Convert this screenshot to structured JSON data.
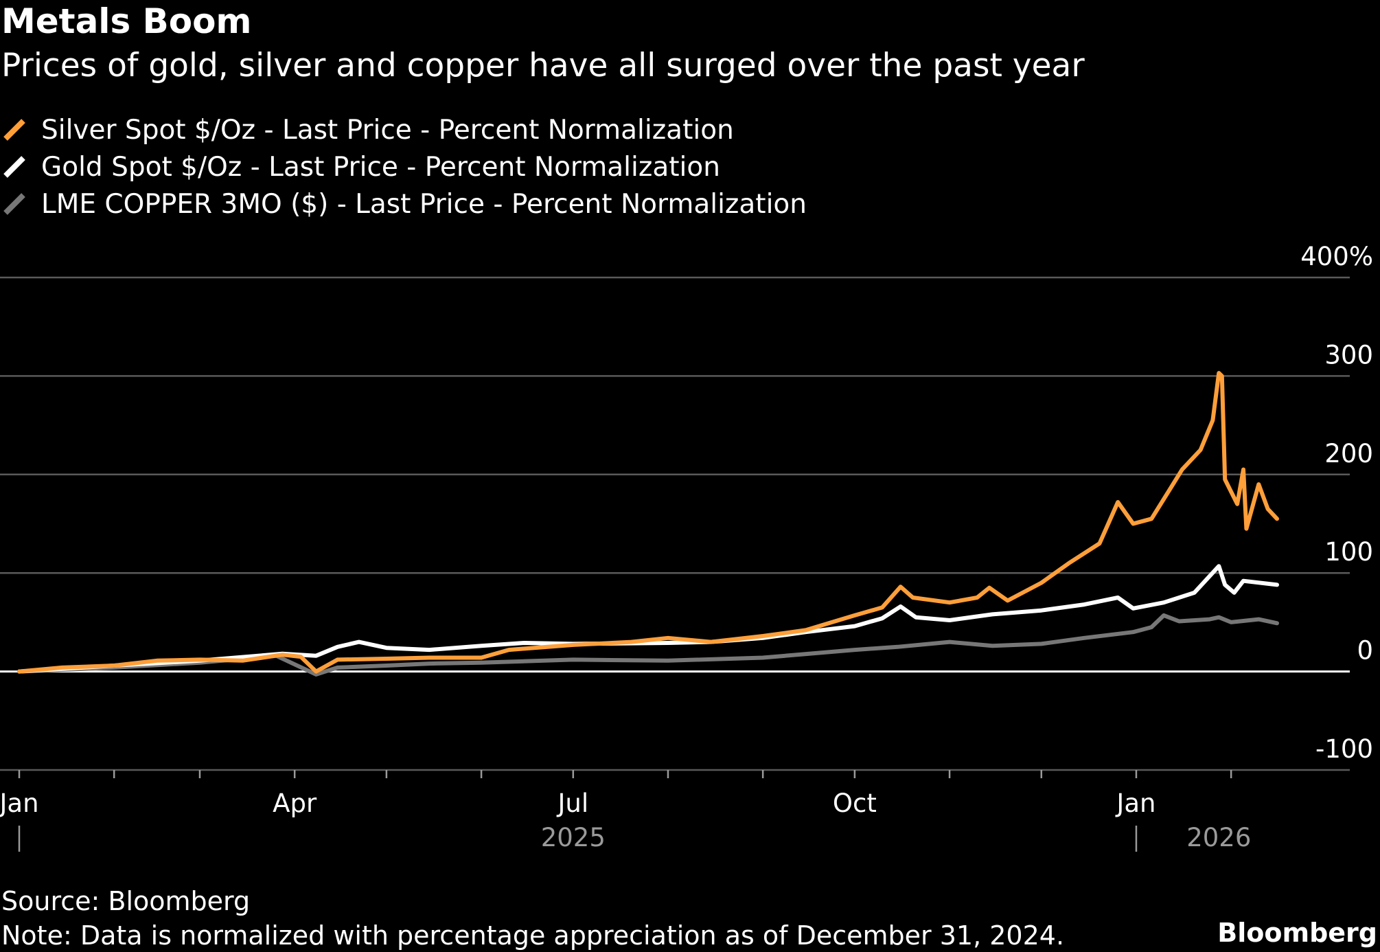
{
  "header": {
    "title": "Metals Boom",
    "subtitle": "Prices of gold, silver and copper have all surged over the past year"
  },
  "footer": {
    "source": "Source: Bloomberg",
    "note": "Note: Data is normalized with percentage appreciation as of December 31, 2024.",
    "brand": "Bloomberg"
  },
  "chart_data": {
    "type": "line",
    "title": "Metals Boom",
    "subtitle": "Prices of gold, silver and copper have all surged over the past year",
    "xlabel": "",
    "ylabel": "",
    "ylim": [
      -100,
      400
    ],
    "yticks": [
      "400%",
      "300",
      "200",
      "100",
      "0",
      "-100"
    ],
    "grid": true,
    "x_range": [
      "2025-01-01",
      "2026-02-16"
    ],
    "x_ticks": [
      {
        "date": "2025-01-01",
        "label": "Jan"
      },
      {
        "date": "2025-04-01",
        "label": "Apr"
      },
      {
        "date": "2025-07-01",
        "label": "Jul"
      },
      {
        "date": "2025-10-01",
        "label": "Oct"
      },
      {
        "date": "2026-01-01",
        "label": "Jan"
      }
    ],
    "x_year_labels": [
      {
        "date": "2025-07-01",
        "label": "2025"
      },
      {
        "date": "2026-01-28",
        "label": "2026"
      }
    ],
    "legend_position": "top-left",
    "series": [
      {
        "name": "Silver Spot $/Oz - Last Price - Percent Normalization",
        "color": "#ff9f3a",
        "points": [
          [
            "2025-01-01",
            0
          ],
          [
            "2025-01-15",
            4
          ],
          [
            "2025-02-01",
            6
          ],
          [
            "2025-02-15",
            11
          ],
          [
            "2025-03-01",
            12
          ],
          [
            "2025-03-15",
            11
          ],
          [
            "2025-03-28",
            17
          ],
          [
            "2025-04-03",
            15
          ],
          [
            "2025-04-08",
            0
          ],
          [
            "2025-04-15",
            12
          ],
          [
            "2025-05-01",
            13
          ],
          [
            "2025-05-15",
            14
          ],
          [
            "2025-06-01",
            14
          ],
          [
            "2025-06-10",
            22
          ],
          [
            "2025-07-01",
            27
          ],
          [
            "2025-07-20",
            30
          ],
          [
            "2025-08-01",
            34
          ],
          [
            "2025-08-15",
            30
          ],
          [
            "2025-09-01",
            36
          ],
          [
            "2025-09-15",
            42
          ],
          [
            "2025-10-01",
            57
          ],
          [
            "2025-10-10",
            65
          ],
          [
            "2025-10-16",
            86
          ],
          [
            "2025-10-20",
            75
          ],
          [
            "2025-11-01",
            70
          ],
          [
            "2025-11-10",
            75
          ],
          [
            "2025-11-14",
            85
          ],
          [
            "2025-11-20",
            72
          ],
          [
            "2025-12-01",
            90
          ],
          [
            "2025-12-10",
            110
          ],
          [
            "2025-12-20",
            130
          ],
          [
            "2025-12-26",
            172
          ],
          [
            "2025-12-31",
            150
          ],
          [
            "2026-01-06",
            155
          ],
          [
            "2026-01-12",
            185
          ],
          [
            "2026-01-16",
            205
          ],
          [
            "2026-01-22",
            225
          ],
          [
            "2026-01-26",
            255
          ],
          [
            "2026-01-28",
            303
          ],
          [
            "2026-01-29",
            300
          ],
          [
            "2026-01-30",
            195
          ],
          [
            "2026-02-03",
            170
          ],
          [
            "2026-02-05",
            205
          ],
          [
            "2026-02-06",
            145
          ],
          [
            "2026-02-10",
            190
          ],
          [
            "2026-02-13",
            165
          ],
          [
            "2026-02-16",
            155
          ]
        ]
      },
      {
        "name": "Gold Spot $/Oz - Last Price - Percent Normalization",
        "color": "#ffffff",
        "points": [
          [
            "2025-01-01",
            0
          ],
          [
            "2025-02-01",
            6
          ],
          [
            "2025-03-01",
            11
          ],
          [
            "2025-03-28",
            18
          ],
          [
            "2025-04-08",
            16
          ],
          [
            "2025-04-15",
            25
          ],
          [
            "2025-04-22",
            30
          ],
          [
            "2025-05-01",
            24
          ],
          [
            "2025-05-15",
            22
          ],
          [
            "2025-06-01",
            26
          ],
          [
            "2025-06-15",
            29
          ],
          [
            "2025-07-01",
            28
          ],
          [
            "2025-08-01",
            29
          ],
          [
            "2025-08-15",
            30
          ],
          [
            "2025-09-01",
            34
          ],
          [
            "2025-09-15",
            40
          ],
          [
            "2025-10-01",
            46
          ],
          [
            "2025-10-10",
            54
          ],
          [
            "2025-10-16",
            66
          ],
          [
            "2025-10-21",
            55
          ],
          [
            "2025-11-01",
            52
          ],
          [
            "2025-11-15",
            58
          ],
          [
            "2025-12-01",
            62
          ],
          [
            "2025-12-15",
            68
          ],
          [
            "2025-12-26",
            75
          ],
          [
            "2025-12-31",
            64
          ],
          [
            "2026-01-10",
            70
          ],
          [
            "2026-01-20",
            80
          ],
          [
            "2026-01-28",
            107
          ],
          [
            "2026-01-30",
            88
          ],
          [
            "2026-02-02",
            80
          ],
          [
            "2026-02-05",
            92
          ],
          [
            "2026-02-16",
            88
          ]
        ]
      },
      {
        "name": "LME COPPER 3MO ($) - Last Price - Percent Normalization",
        "color": "#777777",
        "points": [
          [
            "2025-01-01",
            0
          ],
          [
            "2025-02-01",
            4
          ],
          [
            "2025-03-01",
            9
          ],
          [
            "2025-03-26",
            16
          ],
          [
            "2025-04-08",
            -3
          ],
          [
            "2025-04-15",
            4
          ],
          [
            "2025-05-01",
            6
          ],
          [
            "2025-05-15",
            8
          ],
          [
            "2025-06-01",
            9
          ],
          [
            "2025-07-01",
            12
          ],
          [
            "2025-08-01",
            11
          ],
          [
            "2025-09-01",
            14
          ],
          [
            "2025-10-01",
            22
          ],
          [
            "2025-10-15",
            25
          ],
          [
            "2025-11-01",
            30
          ],
          [
            "2025-11-15",
            26
          ],
          [
            "2025-12-01",
            28
          ],
          [
            "2025-12-15",
            34
          ],
          [
            "2025-12-31",
            40
          ],
          [
            "2026-01-06",
            45
          ],
          [
            "2026-01-10",
            57
          ],
          [
            "2026-01-15",
            51
          ],
          [
            "2026-01-25",
            53
          ],
          [
            "2026-01-28",
            55
          ],
          [
            "2026-02-01",
            50
          ],
          [
            "2026-02-10",
            53
          ],
          [
            "2026-02-16",
            49
          ]
        ]
      }
    ]
  }
}
